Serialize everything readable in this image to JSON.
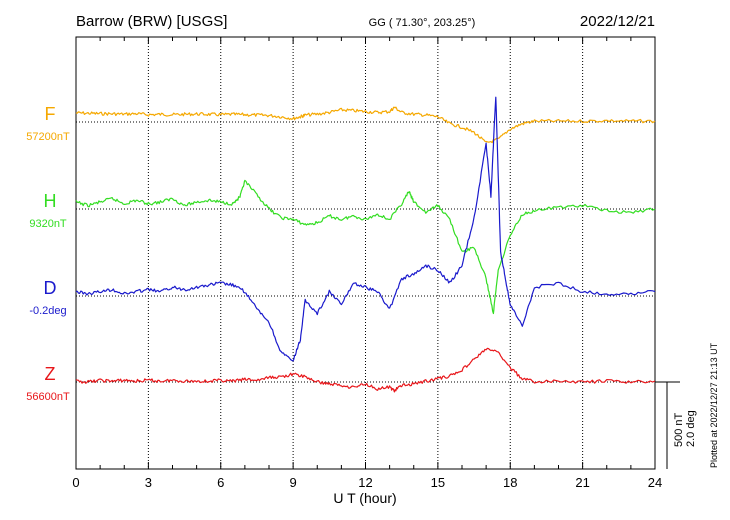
{
  "header": {
    "station": "Barrow (BRW)  [USGS]",
    "coords": "GG ( 71.30°, 203.25°)",
    "date": "2022/12/21"
  },
  "plot_note": "Plotted at 2022/12/27 21:13 UT",
  "scale": {
    "nt": "500 nT",
    "deg": "2.0 deg"
  },
  "chart_data": {
    "type": "line",
    "xlabel": "U T (hour)",
    "xlim": [
      0,
      24
    ],
    "x_ticks": [
      0,
      3,
      6,
      9,
      12,
      15,
      18,
      21,
      24
    ],
    "grid": "dotted vertical lines every 3 hours",
    "series": [
      {
        "name": "F",
        "baseline_label": "57200nT",
        "color": "#f5a800",
        "x": [
          0,
          0.5,
          1,
          1.5,
          2,
          2.5,
          3,
          3.5,
          4,
          4.5,
          5,
          5.5,
          6,
          6.5,
          7,
          7.5,
          8,
          8.5,
          9,
          9.3,
          9.5,
          10,
          10.5,
          11,
          11.5,
          12,
          12.5,
          13,
          13.2,
          13.5,
          14,
          14.5,
          15,
          15.5,
          16,
          16.5,
          17,
          17.5,
          18,
          18.5,
          19,
          20,
          21,
          22,
          23,
          24
        ],
        "values": [
          52,
          50,
          48,
          47,
          45,
          48,
          42,
          44,
          42,
          44,
          46,
          44,
          42,
          44,
          42,
          40,
          38,
          30,
          20,
          30,
          40,
          45,
          55,
          70,
          65,
          60,
          55,
          60,
          85,
          55,
          45,
          40,
          30,
          -10,
          -30,
          -60,
          -120,
          -100,
          -40,
          -10,
          5,
          5,
          5,
          8,
          5,
          5
        ]
      },
      {
        "name": "H",
        "baseline_label": "9320nT",
        "color": "#33dd22",
        "x": [
          0,
          0.5,
          1,
          1.5,
          2,
          2.5,
          3,
          3.5,
          4,
          4.5,
          5,
          5.5,
          6,
          6.5,
          6.8,
          7,
          7.5,
          8,
          8.5,
          9,
          9.5,
          10,
          10.5,
          11,
          11.5,
          12,
          12.5,
          13,
          13.5,
          13.8,
          14,
          14.5,
          15,
          15.5,
          16,
          16.5,
          17,
          17.3,
          17.5,
          18,
          18.5,
          19,
          20,
          21,
          22,
          23,
          24
        ],
        "values": [
          40,
          20,
          40,
          60,
          30,
          50,
          30,
          40,
          60,
          20,
          40,
          50,
          40,
          30,
          70,
          160,
          80,
          0,
          -50,
          -60,
          -90,
          -80,
          -40,
          -60,
          -40,
          -60,
          -30,
          -60,
          30,
          100,
          40,
          -20,
          20,
          -60,
          -250,
          -220,
          -400,
          -600,
          -350,
          -150,
          -30,
          -10,
          10,
          20,
          -10,
          -20,
          0
        ]
      },
      {
        "name": "D",
        "baseline_label": "-0.2deg",
        "color": "#1a1acc",
        "x": [
          0,
          0.5,
          1,
          1.5,
          2,
          2.5,
          3,
          3.5,
          4,
          4.5,
          5,
          5.5,
          6,
          6.5,
          7,
          7.5,
          8,
          8.5,
          9,
          9.3,
          9.5,
          10,
          10.5,
          11,
          11.5,
          12,
          12.5,
          13,
          13.5,
          14,
          14.5,
          15,
          15.5,
          16,
          16.5,
          17,
          17.2,
          17.4,
          17.6,
          17.8,
          18,
          18.5,
          19,
          20,
          21,
          22,
          23,
          24
        ],
        "values": [
          0.1,
          0.05,
          0.1,
          0.15,
          0.05,
          0.1,
          0.15,
          0.1,
          0.2,
          0.15,
          0.2,
          0.25,
          0.3,
          0.25,
          0.1,
          -0.3,
          -0.6,
          -1.3,
          -1.5,
          -1.0,
          -0.1,
          -0.4,
          0.1,
          -0.2,
          0.3,
          0.2,
          0.1,
          -0.3,
          0.4,
          0.5,
          0.7,
          0.6,
          0.3,
          0.7,
          1.8,
          3.5,
          2.3,
          4.6,
          1.0,
          0.4,
          -0.2,
          -0.7,
          0.2,
          0.3,
          0.1,
          0.05,
          0.05,
          0.1
        ]
      },
      {
        "name": "Z",
        "baseline_label": "56600nT",
        "color": "#e8161a",
        "x": [
          0,
          0.5,
          1,
          1.5,
          2,
          2.5,
          3,
          3.5,
          4,
          4.5,
          5,
          5.5,
          6,
          6.5,
          7,
          7.5,
          8,
          8.5,
          9,
          9.5,
          10,
          10.5,
          11,
          11.5,
          12,
          12.5,
          13,
          13.2,
          13.5,
          14,
          14.5,
          15,
          15.5,
          16,
          16.5,
          17,
          17.5,
          18,
          18.5,
          19,
          20,
          21,
          22,
          23,
          24
        ],
        "values": [
          5,
          0,
          10,
          5,
          10,
          5,
          10,
          5,
          10,
          5,
          5,
          5,
          10,
          5,
          15,
          10,
          25,
          30,
          45,
          30,
          0,
          -10,
          -20,
          -30,
          -10,
          -40,
          -30,
          -50,
          -20,
          -10,
          5,
          20,
          35,
          70,
          130,
          190,
          170,
          80,
          20,
          0,
          5,
          0,
          5,
          0,
          5
        ]
      }
    ]
  }
}
